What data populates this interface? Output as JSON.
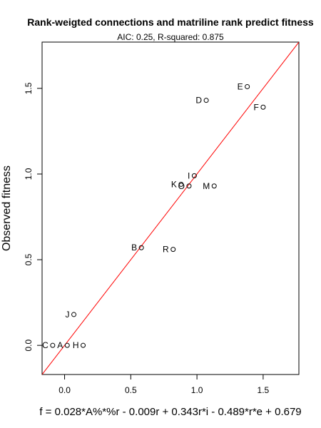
{
  "chart_data": {
    "type": "scatter",
    "title": "Rank-weigted connections and matriline rank  predict fitness",
    "subtitle": "AIC: 0.25, R-squared: 0.875",
    "xlabel": "f = 0.028*A%*%r - 0.009r + 0.343r*i - 0.489*r*e + 0.679",
    "ylabel": "Observed fitness",
    "xlim": [
      -0.17,
      1.77
    ],
    "ylim": [
      -0.17,
      1.77
    ],
    "x_ticks": [
      {
        "value": 0.0,
        "label": "0.0"
      },
      {
        "value": 0.5,
        "label": "0.5"
      },
      {
        "value": 1.0,
        "label": "1.0"
      },
      {
        "value": 1.5,
        "label": "1.5"
      }
    ],
    "y_ticks": [
      {
        "value": 0.0,
        "label": "0.0"
      },
      {
        "value": 0.5,
        "label": "0.5"
      },
      {
        "value": 1.0,
        "label": "1.0"
      },
      {
        "value": 1.5,
        "label": "1.5"
      }
    ],
    "points": [
      {
        "label": "C",
        "x": -0.09,
        "y": 0.0
      },
      {
        "label": "A",
        "x": 0.02,
        "y": 0.0
      },
      {
        "label": "H",
        "x": 0.14,
        "y": 0.0
      },
      {
        "label": "J",
        "x": 0.07,
        "y": 0.18
      },
      {
        "label": "B",
        "x": 0.58,
        "y": 0.57
      },
      {
        "label": "R",
        "x": 0.82,
        "y": 0.56
      },
      {
        "label": "K",
        "x": 0.88,
        "y": 0.94
      },
      {
        "label": "O",
        "x": 0.94,
        "y": 0.93
      },
      {
        "label": "I",
        "x": 0.98,
        "y": 0.99
      },
      {
        "label": "M",
        "x": 1.13,
        "y": 0.93
      },
      {
        "label": "D",
        "x": 1.07,
        "y": 1.43
      },
      {
        "label": "E",
        "x": 1.38,
        "y": 1.51
      },
      {
        "label": "F",
        "x": 1.5,
        "y": 1.39
      }
    ],
    "reference_line": {
      "intercept": 0,
      "slope": 1,
      "color": "#ff0000"
    },
    "point_color": "#000000",
    "grid": false,
    "legend": "none"
  }
}
